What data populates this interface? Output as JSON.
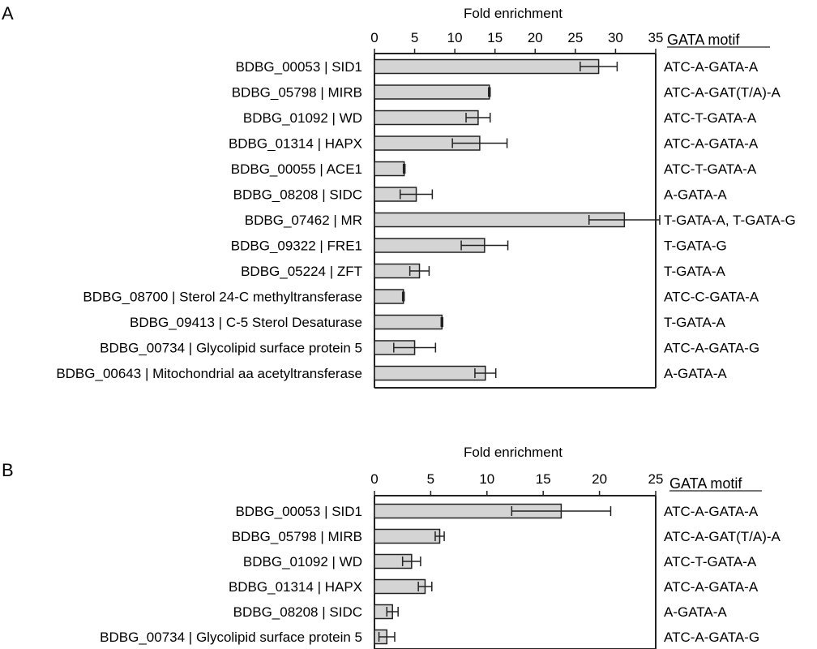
{
  "chart_data": [
    {
      "type": "bar",
      "orientation": "horizontal",
      "panel_label": "A",
      "xlabel": "Fold enrichment",
      "xlim": [
        0,
        35
      ],
      "xticks": [
        0,
        5,
        10,
        15,
        20,
        25,
        30,
        35
      ],
      "xaxis_position": "top",
      "motif_header": "GATA motif",
      "categories": [
        "BDBG_00053 | SID1",
        "BDBG_05798 | MIRB",
        "BDBG_01092 | WD",
        "BDBG_01314 | HAPX",
        "BDBG_00055 | ACE1",
        "BDBG_08208 | SIDC",
        "BDBG_07462 | MR",
        "BDBG_09322 | FRE1",
        "BDBG_05224 | ZFT",
        "BDBG_08700 | Sterol 24-C methyltransferase",
        "BDBG_09413 | C-5 Sterol Desaturase",
        "BDBG_00734 | Glycolipid surface protein 5",
        "BDBG_00643 | Mitochondrial aa acetyltransferase"
      ],
      "values": [
        27.9,
        14.3,
        12.9,
        13.1,
        3.7,
        5.2,
        31.1,
        13.7,
        5.6,
        3.6,
        8.4,
        5.0,
        13.8
      ],
      "errors": [
        2.3,
        0.1,
        1.5,
        3.4,
        0.1,
        2.0,
        4.4,
        2.9,
        1.2,
        0.1,
        0.1,
        2.6,
        1.3
      ],
      "motifs": [
        "ATC-A-GATA-A",
        "ATC-A-GAT(T/A)-A",
        "ATC-T-GATA-A",
        "ATC-A-GATA-A",
        "ATC-T-GATA-A",
        "A-GATA-A",
        "T-GATA-A, T-GATA-G",
        "T-GATA-G",
        "T-GATA-A",
        "ATC-C-GATA-A",
        "T-GATA-A",
        "ATC-A-GATA-G",
        "A-GATA-A"
      ],
      "bar_color": "#d4d4d4",
      "grid": false
    },
    {
      "type": "bar",
      "orientation": "horizontal",
      "panel_label": "B",
      "xlabel": "Fold enrichment",
      "xlim": [
        0,
        25
      ],
      "xticks": [
        0,
        5,
        10,
        15,
        20,
        25
      ],
      "xaxis_position": "top",
      "motif_header": "GATA motif",
      "categories": [
        "BDBG_00053 | SID1",
        "BDBG_05798 | MIRB",
        "BDBG_01092 | WD",
        "BDBG_01314 | HAPX",
        "BDBG_08208 | SIDC",
        "BDBG_00734 | Glycolipid surface protein 5"
      ],
      "values": [
        16.6,
        5.8,
        3.3,
        4.5,
        1.6,
        1.1
      ],
      "errors": [
        4.4,
        0.4,
        0.8,
        0.6,
        0.5,
        0.7
      ],
      "motifs": [
        "ATC-A-GATA-A",
        "ATC-A-GAT(T/A)-A",
        "ATC-T-GATA-A",
        "ATC-A-GATA-A",
        "A-GATA-A",
        "ATC-A-GATA-G"
      ],
      "bar_color": "#d4d4d4",
      "grid": false
    }
  ]
}
